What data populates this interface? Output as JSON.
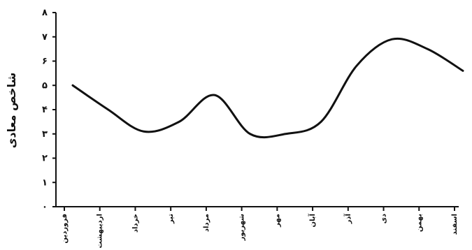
{
  "chart_data": {
    "type": "line",
    "title": "",
    "xlabel": "",
    "ylabel": "شاخص معادی",
    "categories": [
      "فروردین",
      "اردیبهشت",
      "خرداد",
      "تیر",
      "مرداد",
      "شهریور",
      "مهر",
      "آبان",
      "آذر",
      "دی",
      "بهمن",
      "اسفند"
    ],
    "y_tick_labels": [
      "۰",
      "۱",
      "۲",
      "۳",
      "۴",
      "۵",
      "۶",
      "۷",
      "۸"
    ],
    "ylim": [
      0,
      8
    ],
    "grid": false,
    "legend": "none",
    "series": [
      {
        "values": [
          5.0,
          4.0,
          3.1,
          3.5,
          4.6,
          3.0,
          3.0,
          3.5,
          5.8,
          6.9,
          6.5,
          5.6
        ]
      }
    ],
    "line_color": "#111111"
  }
}
